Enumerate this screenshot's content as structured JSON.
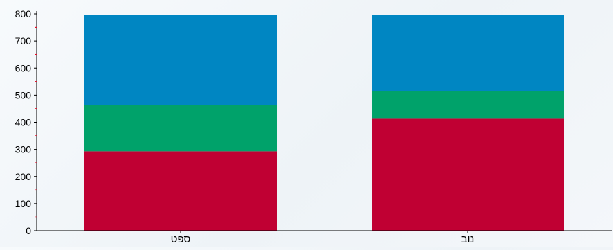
{
  "chart_data": {
    "type": "bar",
    "stacked": true,
    "categories": [
      "ספט",
      "נוב"
    ],
    "series": [
      {
        "values": [
          293,
          413
        ],
        "color": "#c00033"
      },
      {
        "values": [
          172,
          103
        ],
        "color": "#00a26a"
      },
      {
        "values": [
          330,
          279
        ],
        "color": "#0086c2"
      }
    ],
    "yticks": [
      0,
      100,
      200,
      300,
      400,
      500,
      600,
      700,
      800
    ],
    "ylim": [
      0,
      800
    ],
    "grid": false,
    "legend": "none"
  }
}
